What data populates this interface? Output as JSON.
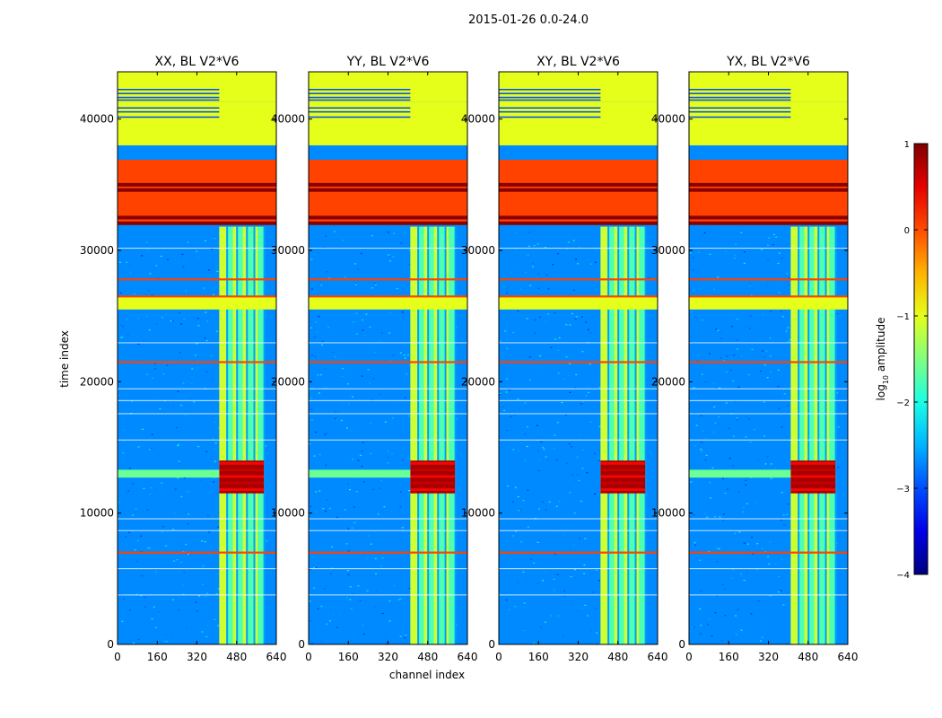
{
  "figure": {
    "suptitle": "2015-01-26 0.0-24.0",
    "xlabel": "channel index",
    "ylabel": "time index"
  },
  "chart_data": {
    "type": "heatmap",
    "panels": [
      {
        "title": "XX, BL V2*V6",
        "pol": "XX"
      },
      {
        "title": "YY, BL V2*V6",
        "pol": "YY"
      },
      {
        "title": "XY, BL V2*V6",
        "pol": "XY"
      },
      {
        "title": "YX, BL V2*V6",
        "pol": "YX"
      }
    ],
    "xlim": [
      0,
      640
    ],
    "ylim": [
      0,
      43600
    ],
    "xticks": [
      0,
      160,
      320,
      480,
      640
    ],
    "yticks": [
      0,
      10000,
      20000,
      30000,
      40000
    ],
    "ytick_labels": [
      "0",
      "10000",
      "20000",
      "30000",
      "40000"
    ],
    "colorbar": {
      "label": "log10 amplitude",
      "label_base": "log",
      "label_sub": "10",
      "label_rest": " amplitude",
      "range": [
        -4,
        1
      ],
      "ticks": [
        1,
        0,
        -1,
        -2,
        -3,
        -4
      ],
      "tick_labels": [
        "1",
        "0",
        "−1",
        "−2",
        "−3",
        "−4"
      ],
      "colormap": "jet"
    },
    "features": {
      "noise_level": -2.7,
      "rfi_channel_range": [
        410,
        590
      ],
      "rfi_columns": [
        410,
        440,
        465,
        480,
        505,
        520,
        550,
        565,
        590
      ],
      "rfi_level": -1.0,
      "flagged_blocks": [
        {
          "time_range": [
            38000,
            41300
          ],
          "value": -1.0
        },
        {
          "time_range": [
            41300,
            43600
          ],
          "value": -1.0
        },
        {
          "time_range": [
            25500,
            26500
          ],
          "value": -1.0
        }
      ],
      "saturated_block": {
        "time_range": [
          32000,
          36900
        ],
        "value": 0.05
      },
      "dark_lines_in_block": [
        32500,
        34600,
        35000
      ],
      "hot_rows_all_channels": [
        7000,
        21500,
        26500,
        27800
      ],
      "white_rows": [
        3800,
        5800,
        8700,
        9600,
        15600,
        17600,
        18600,
        19500,
        23000,
        30200
      ],
      "burst": {
        "time_range": [
          11500,
          14000
        ],
        "peak_level": 0.8
      },
      "broadband_streak": {
        "time_range": [
          12700,
          13300
        ],
        "value": -1.6
      }
    },
    "colors": {
      "flag_green": "#99ff55",
      "orange": "#ff9c00",
      "dark_red": "#800000",
      "noise_blue": "#1452ff"
    }
  }
}
